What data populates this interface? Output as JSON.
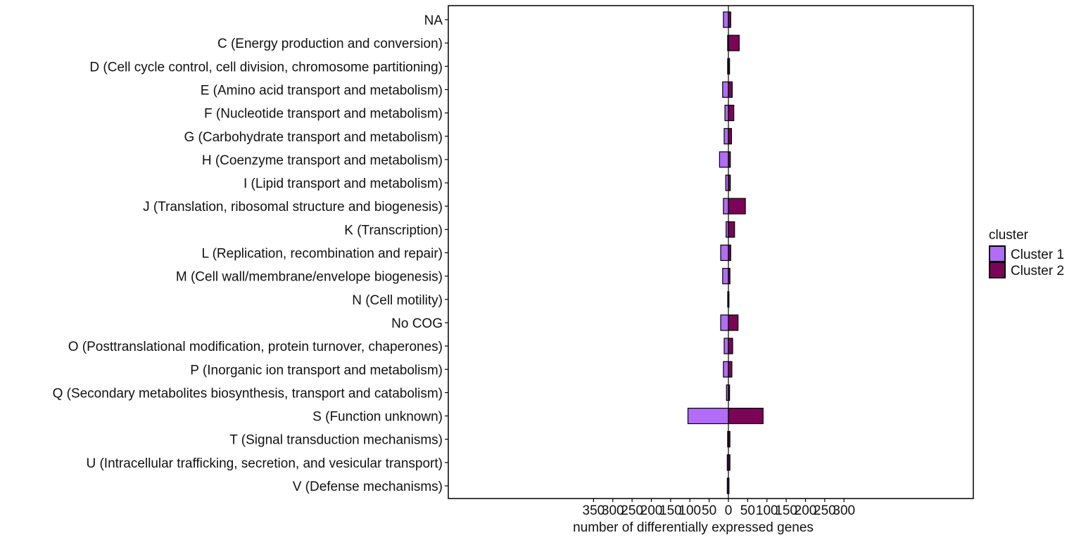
{
  "chart_data": {
    "type": "bar",
    "orientation": "horizontal-diverging",
    "categories": [
      "NA",
      "C (Energy production and conversion)",
      "D (Cell cycle control, cell division, chromosome partitioning)",
      "E (Amino acid transport and metabolism)",
      "F (Nucleotide transport and metabolism)",
      "G (Carbohydrate transport and metabolism)",
      "H (Coenzyme transport and metabolism)",
      "I (Lipid transport and metabolism)",
      "J (Translation,  ribosomal structure and biogenesis)",
      "K (Transcription)",
      "L (Replication, recombination and repair)",
      "M (Cell wall/membrane/envelope biogenesis)",
      "N (Cell motility)",
      "No COG",
      "O (Posttranslational modification, protein turnover, chaperones)",
      "P (Inorganic ion transport and metabolism)",
      "Q (Secondary metabolites biosynthesis, transport and catabolism)",
      "S (Function unknown)",
      "T (Signal transduction mechanisms)",
      "U (Intracellular trafficking, secretion, and vesicular transport)",
      "V (Defense mechanisms)"
    ],
    "series": [
      {
        "name": "Cluster 1",
        "direction": "left",
        "color": "#b26cf7",
        "values": [
          13,
          2,
          2,
          15,
          9,
          11,
          23,
          7,
          13,
          6,
          20,
          15,
          1,
          20,
          11,
          13,
          5,
          105,
          2,
          3,
          3
        ]
      },
      {
        "name": "Cluster 2",
        "direction": "right",
        "color": "#7b0458",
        "values": [
          6,
          28,
          3,
          10,
          14,
          8,
          5,
          5,
          44,
          16,
          6,
          4,
          0,
          25,
          11,
          9,
          3,
          90,
          4,
          4,
          0
        ]
      }
    ],
    "xlabel": "number of differentially expressed genes",
    "ylabel": "",
    "xlim": [
      -375,
      330
    ],
    "xticks": [
      -350,
      -300,
      -250,
      -200,
      -150,
      -100,
      -50,
      0,
      50,
      100,
      150,
      200,
      250,
      300
    ],
    "xtick_labels": [
      "350",
      "300",
      "250",
      "200",
      "150",
      "100",
      "50",
      "0",
      "50",
      "100",
      "150",
      "200",
      "250",
      "300"
    ],
    "legend": {
      "title": "cluster",
      "position": "right",
      "entries": [
        "Cluster 1",
        "Cluster 2"
      ]
    },
    "grid": false
  }
}
